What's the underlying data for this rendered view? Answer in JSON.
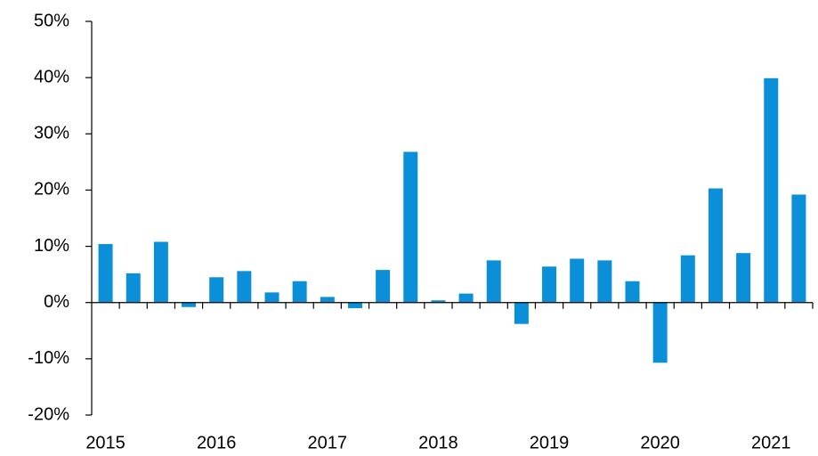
{
  "chart_data": {
    "type": "bar",
    "categories": [
      "2015",
      null,
      null,
      null,
      "2016",
      null,
      null,
      null,
      "2017",
      null,
      null,
      null,
      "2018",
      null,
      null,
      null,
      "2019",
      null,
      null,
      null,
      "2020",
      null,
      null,
      null,
      "2021",
      null
    ],
    "values": [
      10.4,
      5.2,
      10.8,
      -0.8,
      4.5,
      5.6,
      1.8,
      3.8,
      1.0,
      -1.0,
      5.8,
      26.8,
      0.4,
      1.6,
      7.5,
      -3.8,
      6.4,
      7.8,
      7.5,
      3.8,
      -10.7,
      8.4,
      20.3,
      8.8,
      39.9,
      19.2
    ],
    "color": "#0b8fd8",
    "ylim": [
      -20,
      50
    ],
    "yticks": [
      {
        "value": -20,
        "label": "-20%"
      },
      {
        "value": -10,
        "label": "-10%"
      },
      {
        "value": 0,
        "label": "0%"
      },
      {
        "value": 10,
        "label": "10%"
      },
      {
        "value": 20,
        "label": "20%"
      },
      {
        "value": 30,
        "label": "30%"
      },
      {
        "value": 40,
        "label": "40%"
      },
      {
        "value": 50,
        "label": "50%"
      }
    ],
    "grid": false
  }
}
